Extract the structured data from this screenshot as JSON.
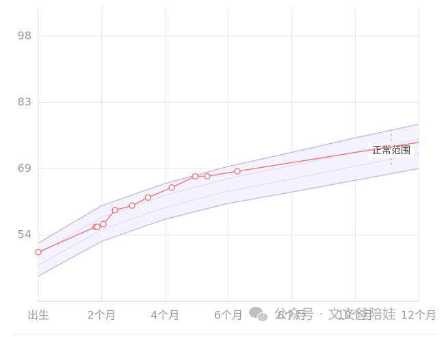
{
  "chart_data": {
    "type": "line",
    "x": [
      0,
      1.81,
      1.86,
      2.05,
      2.42,
      2.96,
      3.46,
      4.21,
      4.95,
      5.33,
      6.28
    ],
    "series": [
      {
        "color": "#f07c80",
        "values": [
          50.2,
          55.8,
          55.8,
          56.4,
          59.5,
          60.5,
          62.3,
          64.5,
          67.0,
          67.0,
          68.1
        ]
      }
    ],
    "projection": {
      "x": [
        6.28,
        12
      ],
      "values": [
        68.1,
        74.5
      ]
    },
    "range": {
      "x": [
        0,
        2,
        4,
        6,
        8,
        10,
        12
      ],
      "upper": [
        52.2,
        60.5,
        65.4,
        69.2,
        72.3,
        75.5,
        78.5
      ],
      "inner_upper": [
        49.8,
        57.9,
        62.8,
        66.5,
        69.4,
        72.4,
        75.2
      ],
      "inner_lower": [
        47.3,
        55.2,
        60.1,
        63.7,
        66.4,
        69.2,
        72.0
      ],
      "lower": [
        44.9,
        52.6,
        57.5,
        61.0,
        63.5,
        66.1,
        68.7
      ],
      "color": "#c5bfe6",
      "label": "正常范围"
    },
    "xlim": [
      0,
      12
    ],
    "xticks": [
      {
        "value": 0,
        "label": "出生"
      },
      {
        "value": 2,
        "label": "2个月"
      },
      {
        "value": 4,
        "label": "4个月"
      },
      {
        "value": 6,
        "label": "6个月"
      },
      {
        "value": 8,
        "label": "8个月"
      },
      {
        "value": 10,
        "label": "10个月"
      },
      {
        "value": 12,
        "label": "12个月"
      }
    ],
    "ylim": [
      39.3,
      104.5
    ],
    "yticks": [
      54,
      {
        "value": 68.67,
        "label": "69"
      },
      {
        "value": 83.33,
        "label": "83"
      },
      98
    ],
    "grid": true
  },
  "watermark": "公众号 · 文文爸陪娃"
}
